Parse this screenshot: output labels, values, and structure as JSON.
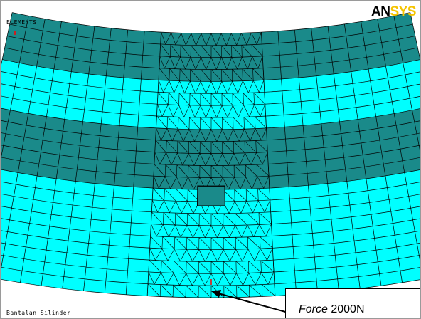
{
  "viewport": {
    "plot_type_label": "ELEMENTS",
    "title_label": "Bantalan Silinder",
    "logo": {
      "primary": "AN",
      "secondary": "SYS"
    }
  },
  "annotation": {
    "force_label": "Force",
    "force_value": "2000N"
  },
  "colors": {
    "mesh_dark": "#1a8a8a",
    "mesh_light": "#00ffff",
    "mesh_lines": "#000000",
    "node_marker": "#ff0000",
    "logo_accent": "#f5c400"
  }
}
